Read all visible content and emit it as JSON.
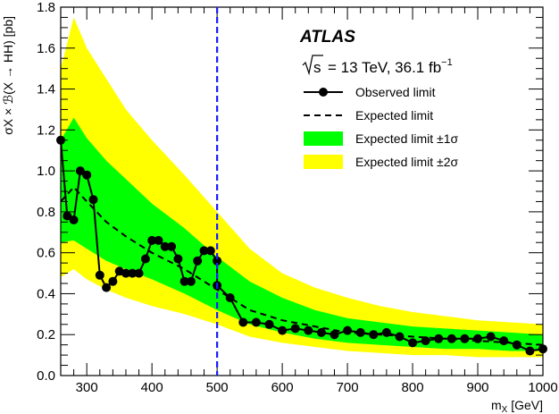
{
  "chart_data": {
    "type": "line",
    "experiment_label": "ATLAS",
    "energy_label": {
      "sqrt": "s",
      "text": "= 13 TeV, 36.1 fb",
      "superscript": "−1"
    },
    "xlabel": "m",
    "xlabel_sub": "X",
    "xlabel_unit": " [GeV]",
    "ylabel": "σX × ℬ(X → HH) [pb]",
    "xlim": [
      260,
      1000
    ],
    "ylim": [
      0.0,
      1.8
    ],
    "xticks": [
      "300",
      "400",
      "500",
      "600",
      "700",
      "800",
      "900",
      "1000"
    ],
    "yticks": [
      "0.0",
      "0.2",
      "0.4",
      "0.6",
      "0.8",
      "1.0",
      "1.2",
      "1.4",
      "1.6",
      "1.8"
    ],
    "vertical_line_x": 500,
    "legend_position": "top-right",
    "colors": {
      "yellow_band": "#ffff00",
      "green_band": "#00ff00",
      "vline": "#1a1aff",
      "observed": "#000000"
    },
    "legend": [
      {
        "key": "observed",
        "label": "Observed limit"
      },
      {
        "key": "expected",
        "label": "Expected limit"
      },
      {
        "key": "band1",
        "label": "Expected limit ±1σ"
      },
      {
        "key": "band2",
        "label": "Expected limit ±2σ"
      }
    ],
    "band_x": [
      260,
      280,
      300,
      330,
      360,
      400,
      450,
      500,
      550,
      600,
      650,
      700,
      750,
      800,
      850,
      900,
      950,
      1000
    ],
    "band2_upper": [
      1.5,
      1.75,
      1.6,
      1.45,
      1.3,
      1.15,
      0.98,
      0.8,
      0.62,
      0.5,
      0.43,
      0.38,
      0.34,
      0.31,
      0.29,
      0.27,
      0.26,
      0.25
    ],
    "band1_upper": [
      1.15,
      1.26,
      1.16,
      1.05,
      0.96,
      0.84,
      0.72,
      0.58,
      0.46,
      0.38,
      0.32,
      0.28,
      0.26,
      0.24,
      0.23,
      0.22,
      0.21,
      0.2
    ],
    "band1_lower": [
      0.65,
      0.66,
      0.62,
      0.56,
      0.52,
      0.47,
      0.4,
      0.32,
      0.25,
      0.21,
      0.18,
      0.16,
      0.15,
      0.14,
      0.13,
      0.13,
      0.12,
      0.12
    ],
    "band2_lower": [
      0.48,
      0.52,
      0.47,
      0.42,
      0.38,
      0.34,
      0.3,
      0.25,
      0.19,
      0.16,
      0.14,
      0.12,
      0.11,
      0.1,
      0.1,
      0.09,
      0.09,
      0.09
    ],
    "expected": {
      "x": [
        260,
        280,
        300,
        330,
        360,
        400,
        450,
        500,
        550,
        600,
        650,
        700,
        750,
        800,
        850,
        900,
        950,
        1000
      ],
      "y": [
        0.85,
        0.92,
        0.85,
        0.75,
        0.68,
        0.6,
        0.52,
        0.42,
        0.32,
        0.27,
        0.24,
        0.21,
        0.2,
        0.19,
        0.18,
        0.17,
        0.16,
        0.15
      ]
    },
    "observed": {
      "x": [
        260,
        270,
        280,
        290,
        300,
        310,
        320,
        330,
        340,
        350,
        360,
        370,
        380,
        390,
        400,
        410,
        420,
        430,
        440,
        450,
        460,
        470,
        480,
        490,
        500,
        500,
        520,
        540,
        560,
        580,
        600,
        620,
        640,
        660,
        680,
        700,
        720,
        740,
        760,
        780,
        800,
        820,
        840,
        860,
        880,
        900,
        920,
        940,
        960,
        980,
        1000
      ],
      "y": [
        1.15,
        0.78,
        0.76,
        1.0,
        0.98,
        0.86,
        0.49,
        0.43,
        0.46,
        0.51,
        0.5,
        0.5,
        0.5,
        0.57,
        0.66,
        0.66,
        0.63,
        0.63,
        0.57,
        0.46,
        0.46,
        0.56,
        0.61,
        0.61,
        0.56,
        0.44,
        0.38,
        0.26,
        0.26,
        0.25,
        0.22,
        0.23,
        0.22,
        0.21,
        0.2,
        0.22,
        0.21,
        0.2,
        0.21,
        0.19,
        0.16,
        0.17,
        0.18,
        0.18,
        0.18,
        0.18,
        0.19,
        0.17,
        0.15,
        0.12,
        0.13
      ]
    }
  }
}
